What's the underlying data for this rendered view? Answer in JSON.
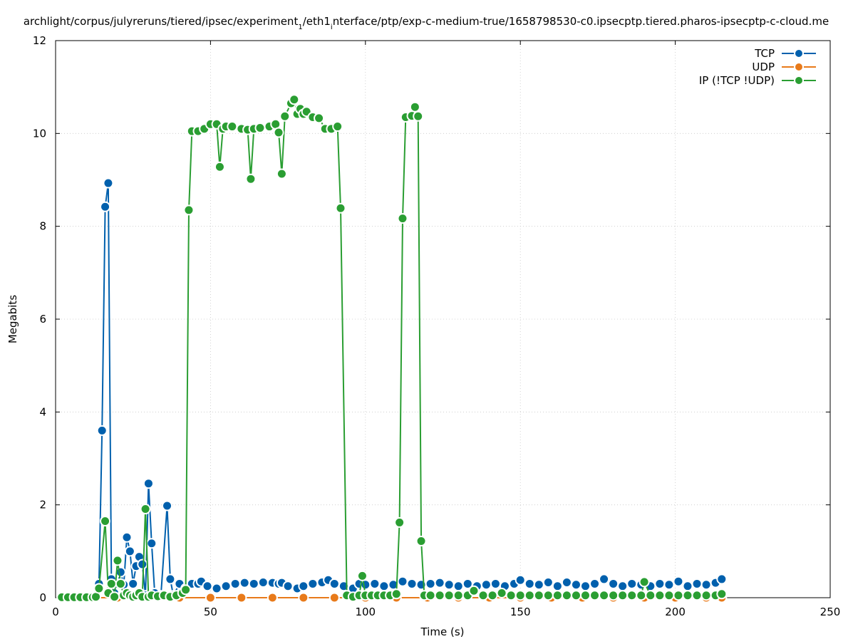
{
  "chart_data": {
    "type": "line",
    "title": "archlight/corpus/julyreruns/tiered/ipsec/experiment",
    "title_parts": [
      {
        "text": "archlight/corpus/julyreruns/tiered/ipsec/experiment",
        "sub": false
      },
      {
        "text": "1",
        "sub": true
      },
      {
        "text": "/eth1",
        "sub": false
      },
      {
        "text": "i",
        "sub": true
      },
      {
        "text": "nterface/ptp/exp-c-medium-true/1658798530-c0.ipsecptp.tiered.pharos-ipsecptp-c-cloud.me",
        "sub": false
      }
    ],
    "xlabel": "Time (s)",
    "ylabel": "Megabits",
    "xlim": [
      0,
      250
    ],
    "ylim": [
      0,
      12
    ],
    "xticks": [
      0,
      50,
      100,
      150,
      200,
      250
    ],
    "yticks": [
      0,
      2,
      4,
      6,
      8,
      10,
      12
    ],
    "grid": true,
    "legend_position": "top-right",
    "series": [
      {
        "name": "TCP",
        "color": "#0060ad",
        "points": [
          [
            2,
            0.02
          ],
          [
            4,
            0.02
          ],
          [
            6,
            0.02
          ],
          [
            8,
            0.02
          ],
          [
            10,
            0.02
          ],
          [
            12,
            0.02
          ],
          [
            14,
            0.3
          ],
          [
            15,
            3.6
          ],
          [
            16,
            8.42
          ],
          [
            17,
            8.93
          ],
          [
            18,
            0.4
          ],
          [
            19,
            0.1
          ],
          [
            20,
            0.3
          ],
          [
            21,
            0.55
          ],
          [
            22,
            0.28
          ],
          [
            23,
            1.3
          ],
          [
            24,
            1.0
          ],
          [
            25,
            0.3
          ],
          [
            26,
            0.68
          ],
          [
            27,
            0.88
          ],
          [
            28,
            0.72
          ],
          [
            29,
            0.05
          ],
          [
            30,
            2.46
          ],
          [
            31,
            1.17
          ],
          [
            32,
            0.1
          ],
          [
            34,
            0.05
          ],
          [
            36,
            1.98
          ],
          [
            37,
            0.4
          ],
          [
            38,
            0.05
          ],
          [
            40,
            0.3
          ],
          [
            42,
            0.2
          ],
          [
            44,
            0.3
          ],
          [
            46,
            0.3
          ],
          [
            47,
            0.35
          ],
          [
            49,
            0.25
          ],
          [
            52,
            0.2
          ],
          [
            55,
            0.25
          ],
          [
            58,
            0.3
          ],
          [
            61,
            0.32
          ],
          [
            64,
            0.3
          ],
          [
            67,
            0.33
          ],
          [
            70,
            0.32
          ],
          [
            72,
            0.3
          ],
          [
            73,
            0.32
          ],
          [
            75,
            0.25
          ],
          [
            78,
            0.2
          ],
          [
            80,
            0.25
          ],
          [
            83,
            0.3
          ],
          [
            86,
            0.33
          ],
          [
            88,
            0.38
          ],
          [
            90,
            0.3
          ],
          [
            93,
            0.25
          ],
          [
            96,
            0.2
          ],
          [
            98,
            0.3
          ],
          [
            100,
            0.28
          ],
          [
            103,
            0.3
          ],
          [
            106,
            0.25
          ],
          [
            109,
            0.28
          ],
          [
            112,
            0.35
          ],
          [
            115,
            0.3
          ],
          [
            118,
            0.28
          ],
          [
            121,
            0.3
          ],
          [
            124,
            0.32
          ],
          [
            127,
            0.28
          ],
          [
            130,
            0.25
          ],
          [
            133,
            0.3
          ],
          [
            136,
            0.25
          ],
          [
            139,
            0.28
          ],
          [
            142,
            0.3
          ],
          [
            145,
            0.25
          ],
          [
            148,
            0.3
          ],
          [
            150,
            0.38
          ],
          [
            153,
            0.3
          ],
          [
            156,
            0.28
          ],
          [
            159,
            0.33
          ],
          [
            162,
            0.25
          ],
          [
            165,
            0.33
          ],
          [
            168,
            0.28
          ],
          [
            171,
            0.25
          ],
          [
            174,
            0.3
          ],
          [
            177,
            0.4
          ],
          [
            180,
            0.3
          ],
          [
            183,
            0.25
          ],
          [
            186,
            0.3
          ],
          [
            189,
            0.28
          ],
          [
            192,
            0.25
          ],
          [
            195,
            0.3
          ],
          [
            198,
            0.28
          ],
          [
            201,
            0.35
          ],
          [
            204,
            0.25
          ],
          [
            207,
            0.3
          ],
          [
            210,
            0.28
          ],
          [
            213,
            0.32
          ],
          [
            215,
            0.4
          ]
        ]
      },
      {
        "name": "UDP",
        "color": "#e87a1a",
        "points": [
          [
            2,
            0
          ],
          [
            10,
            0
          ],
          [
            20,
            0
          ],
          [
            30,
            0
          ],
          [
            40,
            0
          ],
          [
            50,
            0
          ],
          [
            60,
            0
          ],
          [
            70,
            0
          ],
          [
            80,
            0
          ],
          [
            90,
            0
          ],
          [
            100,
            0
          ],
          [
            110,
            0
          ],
          [
            120,
            0
          ],
          [
            130,
            0
          ],
          [
            140,
            0
          ],
          [
            150,
            0
          ],
          [
            160,
            0
          ],
          [
            170,
            0
          ],
          [
            180,
            0
          ],
          [
            190,
            0
          ],
          [
            200,
            0
          ],
          [
            210,
            0
          ],
          [
            215,
            0
          ]
        ]
      },
      {
        "name": "IP (!TCP  !UDP)",
        "color": "#2a9e32",
        "points": [
          [
            2,
            0.01
          ],
          [
            4,
            0.01
          ],
          [
            6,
            0.01
          ],
          [
            8,
            0.01
          ],
          [
            10,
            0.01
          ],
          [
            12,
            0.01
          ],
          [
            13,
            0.02
          ],
          [
            14,
            0.2
          ],
          [
            16,
            1.65
          ],
          [
            17,
            0.1
          ],
          [
            18,
            0.3
          ],
          [
            19,
            0.02
          ],
          [
            20,
            0.8
          ],
          [
            21,
            0.3
          ],
          [
            22,
            0.05
          ],
          [
            23,
            0.1
          ],
          [
            24,
            0.05
          ],
          [
            25,
            0.02
          ],
          [
            26,
            0.05
          ],
          [
            27,
            0.1
          ],
          [
            28,
            0.02
          ],
          [
            29,
            1.91
          ],
          [
            30,
            0.02
          ],
          [
            31,
            0.05
          ],
          [
            33,
            0.03
          ],
          [
            35,
            0.05
          ],
          [
            37,
            0.02
          ],
          [
            39,
            0.05
          ],
          [
            41,
            0.1
          ],
          [
            42,
            0.17
          ],
          [
            43,
            8.35
          ],
          [
            44,
            10.05
          ],
          [
            46,
            10.05
          ],
          [
            48,
            10.1
          ],
          [
            50,
            10.2
          ],
          [
            52,
            10.2
          ],
          [
            53,
            9.28
          ],
          [
            54,
            10.1
          ],
          [
            55,
            10.15
          ],
          [
            57,
            10.15
          ],
          [
            60,
            10.1
          ],
          [
            62,
            10.08
          ],
          [
            63,
            9.02
          ],
          [
            64,
            10.1
          ],
          [
            66,
            10.12
          ],
          [
            69,
            10.15
          ],
          [
            71,
            10.2
          ],
          [
            72,
            10.02
          ],
          [
            73,
            9.13
          ],
          [
            74,
            10.37
          ],
          [
            76,
            10.65
          ],
          [
            77,
            10.73
          ],
          [
            78,
            10.42
          ],
          [
            79,
            10.53
          ],
          [
            80,
            10.42
          ],
          [
            81,
            10.47
          ],
          [
            83,
            10.35
          ],
          [
            85,
            10.33
          ],
          [
            87,
            10.1
          ],
          [
            89,
            10.1
          ],
          [
            91,
            10.15
          ],
          [
            92,
            8.39
          ],
          [
            94,
            0.05
          ],
          [
            96,
            0.02
          ],
          [
            98,
            0.05
          ],
          [
            99,
            0.47
          ],
          [
            100,
            0.05
          ],
          [
            102,
            0.05
          ],
          [
            104,
            0.05
          ],
          [
            106,
            0.05
          ],
          [
            108,
            0.05
          ],
          [
            110,
            0.08
          ],
          [
            111,
            1.62
          ],
          [
            112,
            8.17
          ],
          [
            113,
            10.35
          ],
          [
            115,
            10.38
          ],
          [
            116,
            10.57
          ],
          [
            117,
            10.37
          ],
          [
            118,
            1.22
          ],
          [
            119,
            0.05
          ],
          [
            121,
            0.05
          ],
          [
            124,
            0.05
          ],
          [
            127,
            0.05
          ],
          [
            130,
            0.05
          ],
          [
            133,
            0.05
          ],
          [
            135,
            0.15
          ],
          [
            138,
            0.05
          ],
          [
            141,
            0.05
          ],
          [
            144,
            0.1
          ],
          [
            147,
            0.05
          ],
          [
            150,
            0.05
          ],
          [
            153,
            0.05
          ],
          [
            156,
            0.05
          ],
          [
            159,
            0.05
          ],
          [
            162,
            0.05
          ],
          [
            165,
            0.05
          ],
          [
            168,
            0.05
          ],
          [
            171,
            0.05
          ],
          [
            174,
            0.05
          ],
          [
            177,
            0.05
          ],
          [
            180,
            0.05
          ],
          [
            183,
            0.05
          ],
          [
            186,
            0.05
          ],
          [
            189,
            0.05
          ],
          [
            190,
            0.34
          ],
          [
            192,
            0.05
          ],
          [
            195,
            0.05
          ],
          [
            198,
            0.05
          ],
          [
            201,
            0.05
          ],
          [
            204,
            0.05
          ],
          [
            207,
            0.05
          ],
          [
            210,
            0.05
          ],
          [
            213,
            0.05
          ],
          [
            215,
            0.08
          ]
        ]
      }
    ]
  }
}
